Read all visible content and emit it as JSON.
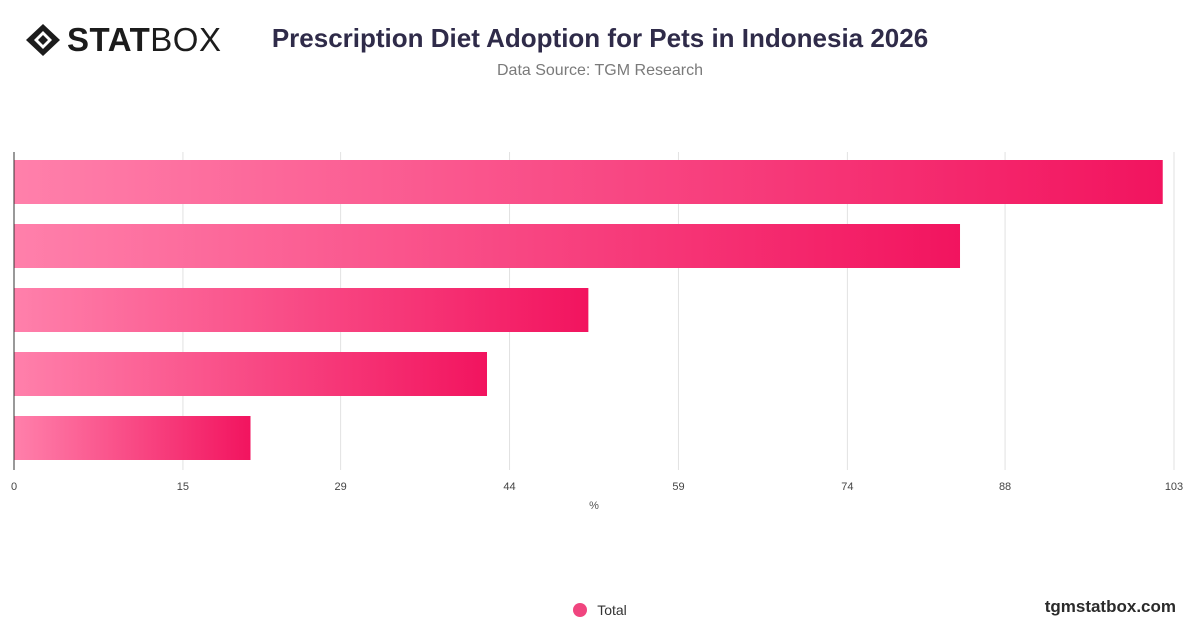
{
  "brand": {
    "logo_bold": "STAT",
    "logo_light": "BOX"
  },
  "header": {
    "title": "Prescription Diet Adoption for Pets in Indonesia 2026",
    "subtitle": "Data Source: TGM Research"
  },
  "footer": {
    "site": "tgmstatbox.com"
  },
  "colors": {
    "bar_start": "#ff80ab",
    "bar_end": "#f2145f",
    "legend": "#f0457f",
    "grid": "#e2e2e2",
    "axis": "#333333"
  },
  "chart_data": {
    "type": "bar",
    "orientation": "horizontal",
    "categories": [
      "",
      "",
      "",
      "",
      ""
    ],
    "series": [
      {
        "name": "Total",
        "values": [
          102,
          84,
          51,
          42,
          21
        ]
      }
    ],
    "xlabel": "%",
    "ylabel": "",
    "xlim": [
      0,
      103
    ],
    "xticks": [
      0,
      15,
      29,
      44,
      59,
      74,
      88,
      103
    ],
    "grid": true,
    "legend": "bottom-center"
  }
}
